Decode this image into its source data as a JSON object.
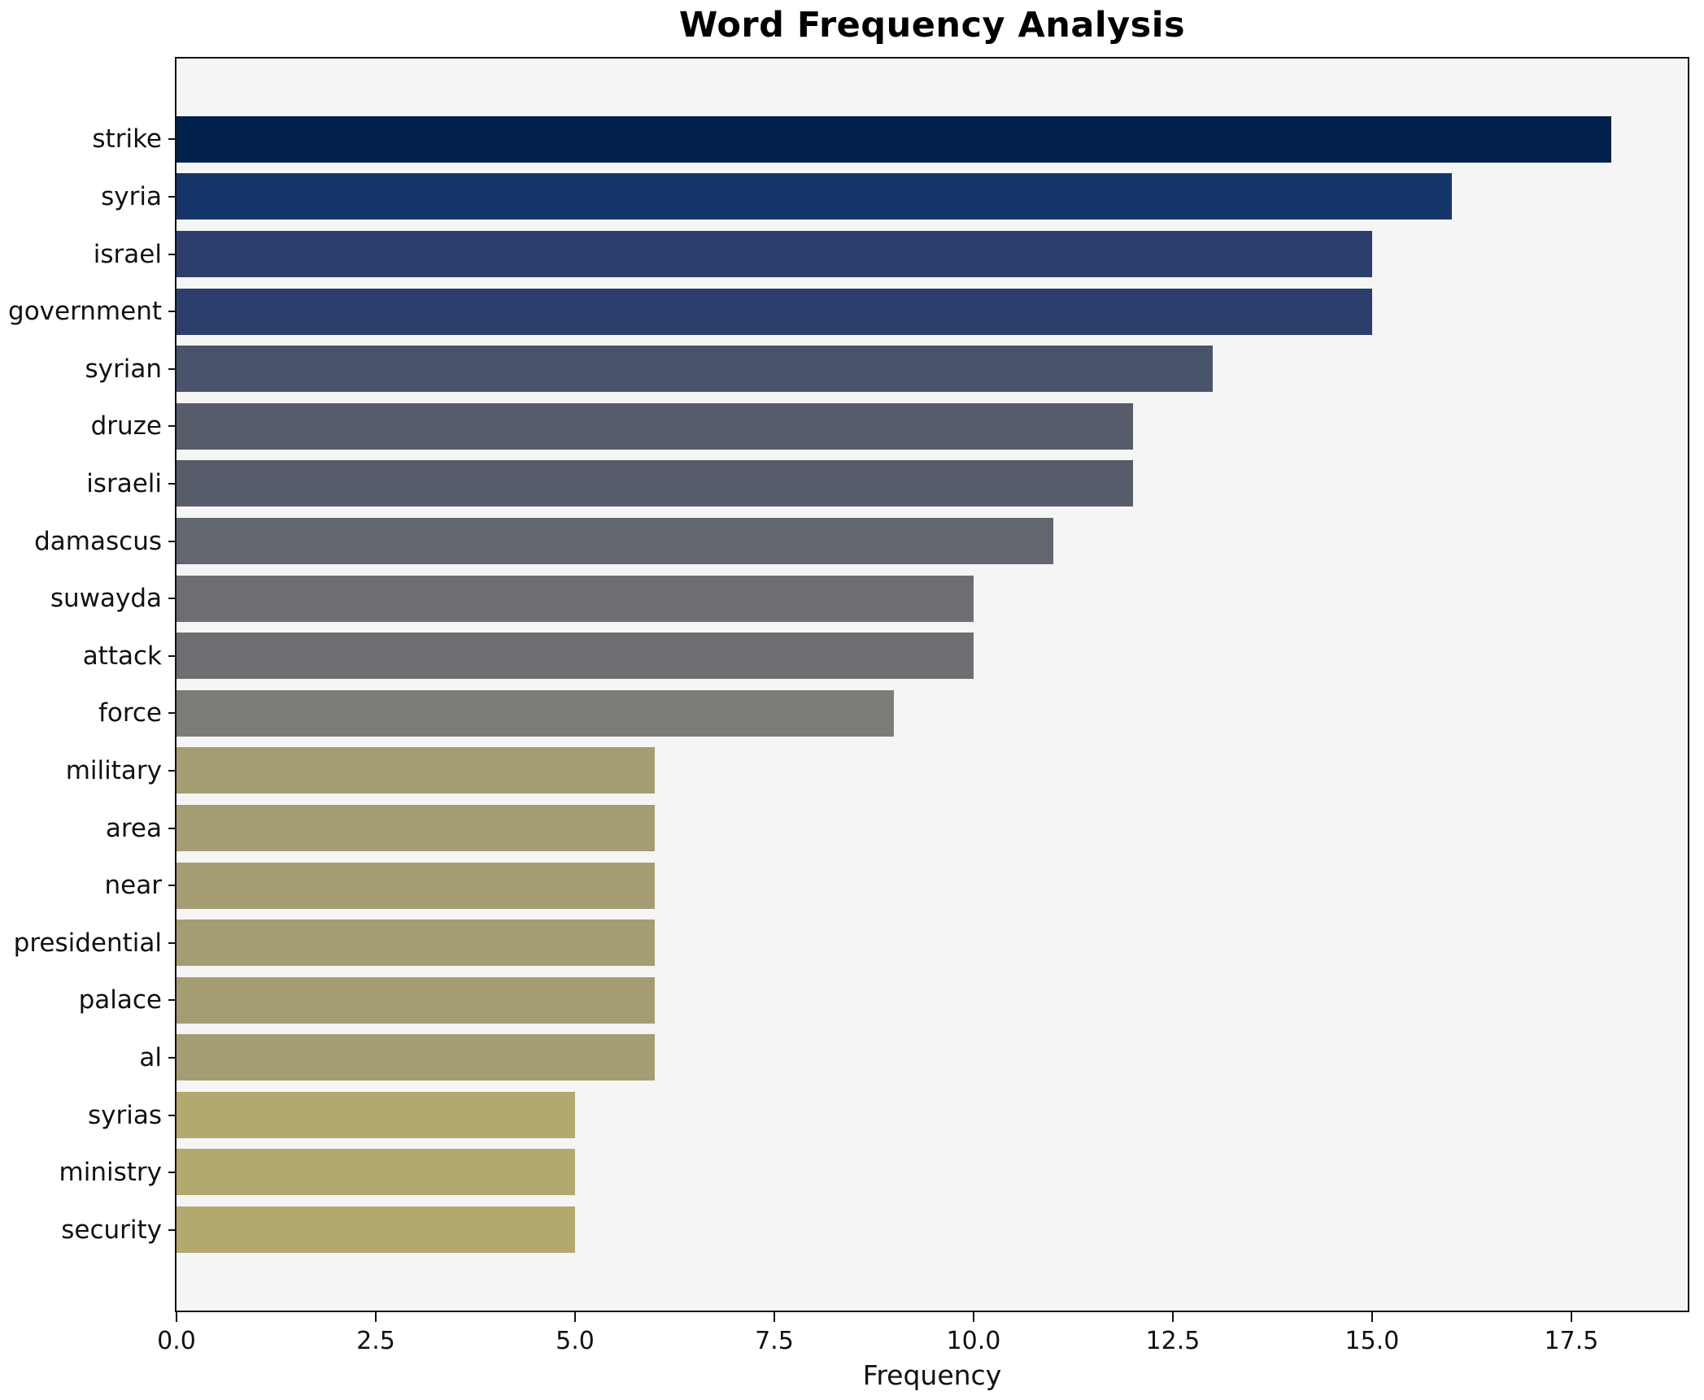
{
  "figure": {
    "title": "Word Frequency Analysis",
    "xlabel": "Frequency",
    "background_color": "#ffffff",
    "plot_background_color": "#f5f5f6",
    "axis_color": "#121212"
  },
  "chart_data": {
    "type": "bar",
    "orientation": "horizontal",
    "title": "Word Frequency Analysis",
    "xlabel": "Frequency",
    "ylabel": "",
    "categories": [
      "strike",
      "syria",
      "israel",
      "government",
      "syrian",
      "druze",
      "israeli",
      "damascus",
      "suwayda",
      "attack",
      "force",
      "military",
      "area",
      "near",
      "presidential",
      "palace",
      "al",
      "syrias",
      "ministry",
      "security"
    ],
    "values": [
      18,
      16,
      15,
      15,
      13,
      12,
      12,
      11,
      10,
      10,
      9,
      6,
      6,
      6,
      6,
      6,
      6,
      5,
      5,
      5
    ],
    "bar_colors": [
      "#01214c",
      "#16356b",
      "#2c3e6b",
      "#2c3e6b",
      "#49536b",
      "#575c6b",
      "#575c6b",
      "#62666e",
      "#6d6e71",
      "#6d6e71",
      "#7b7b78",
      "#a49c72",
      "#a49c72",
      "#a49c72",
      "#a49c72",
      "#a49c72",
      "#a49c72",
      "#b3a96e",
      "#b3a96e",
      "#b3a96e"
    ],
    "xticks": [
      0.0,
      2.5,
      5.0,
      7.5,
      10.0,
      12.5,
      15.0,
      17.5
    ],
    "xtick_labels": [
      "0.0",
      "2.5",
      "5.0",
      "7.5",
      "10.0",
      "12.5",
      "15.0",
      "17.5"
    ],
    "xlim": [
      0,
      18.96
    ],
    "grid": false,
    "legend": null
  }
}
